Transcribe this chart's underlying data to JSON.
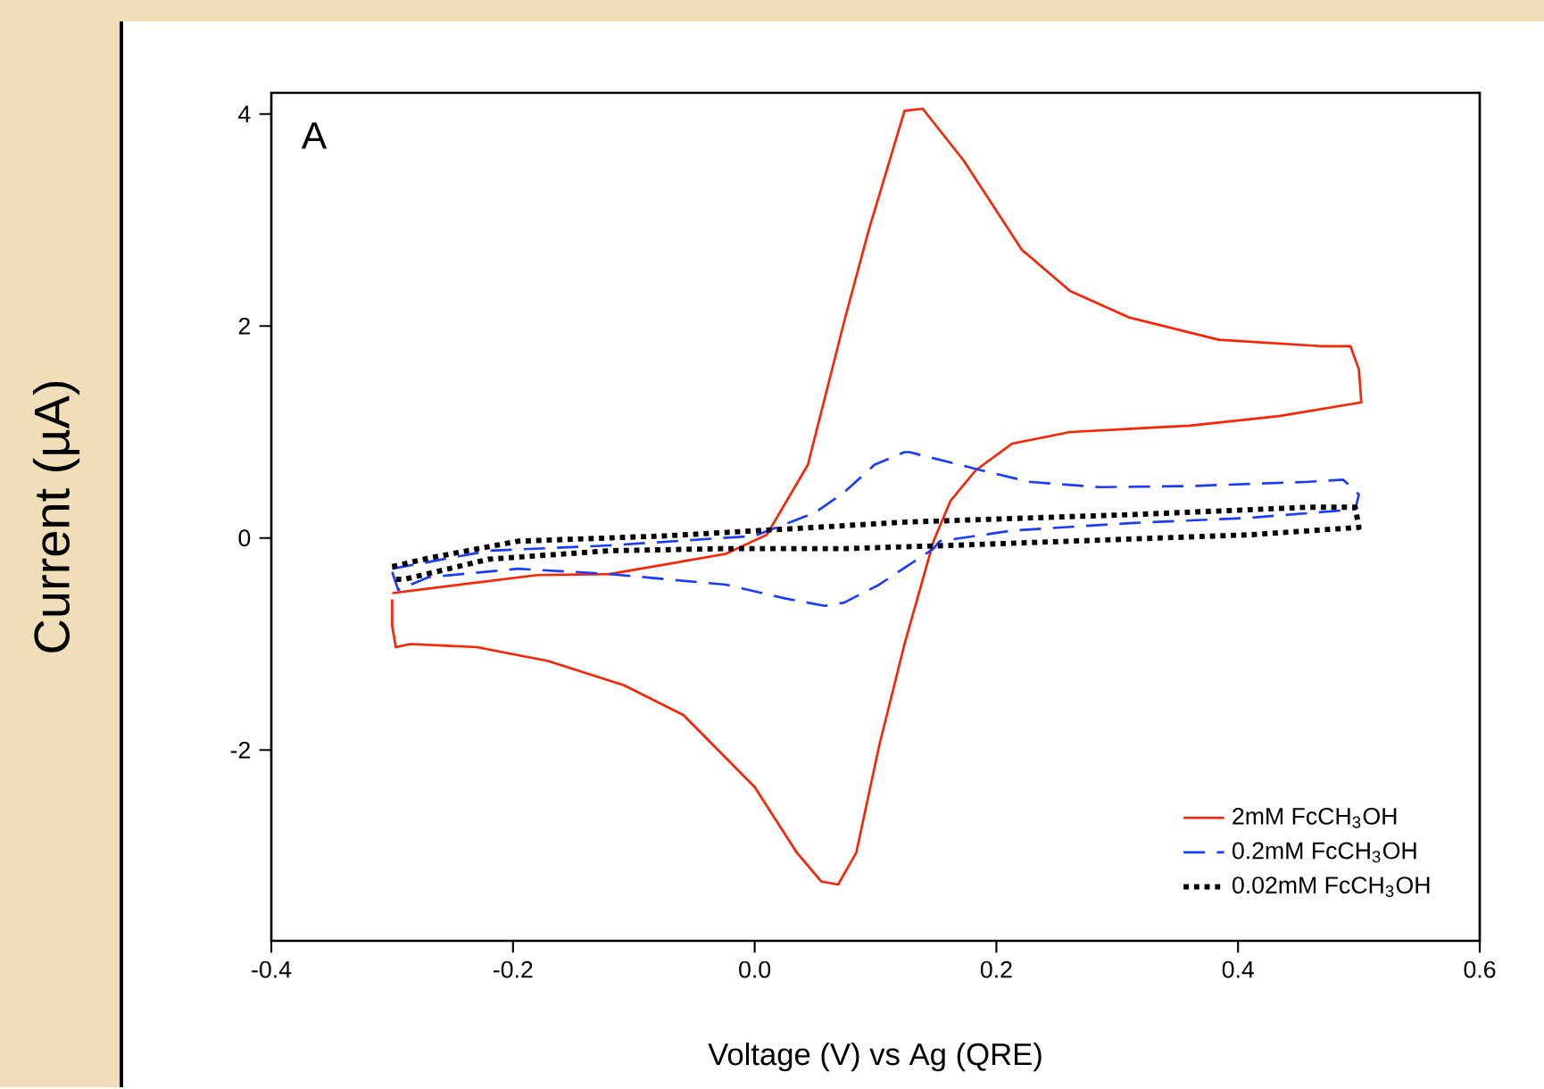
{
  "chart_data": {
    "type": "line",
    "xlabel": "Voltage (V) vs Ag (QRE)",
    "ylabel": "Current (µA)",
    "annotations": [
      "A"
    ],
    "xlim": [
      -0.4,
      0.6
    ],
    "ylim": [
      -3.8,
      4.2
    ],
    "xticks": [
      -0.4,
      -0.2,
      {
        "value": 0,
        "label": "0.0"
      },
      0.2,
      0.4,
      0.6
    ],
    "yticks": [
      -2,
      0,
      2,
      4
    ],
    "grid": false,
    "legend": "bottom right",
    "marker": "none",
    "series": [
      {
        "name": "2mM FcCH$_{3}$OH",
        "color": "#ff2200",
        "line_style": "solid",
        "x": [
          -0.3,
          -0.18,
          -0.12,
          -0.024,
          0.01,
          0.044,
          0.074,
          0.094,
          0.124,
          0.139,
          0.173,
          0.221,
          0.261,
          0.31,
          0.384,
          0.468,
          0.493,
          0.5,
          0.502,
          0.434,
          0.36,
          0.261,
          0.213,
          0.183,
          0.162,
          0.148,
          0.124,
          0.103,
          0.084,
          0.069,
          0.055,
          0.035,
          0.0,
          -0.059,
          -0.108,
          -0.171,
          -0.23,
          -0.285,
          -0.297,
          -0.3,
          -0.3
        ],
        "values": [
          -0.52,
          -0.35,
          -0.34,
          -0.15,
          0.03,
          0.69,
          2.04,
          2.89,
          4.03,
          4.05,
          3.56,
          2.72,
          2.33,
          2.08,
          1.87,
          1.81,
          1.81,
          1.59,
          1.28,
          1.15,
          1.06,
          1.0,
          0.89,
          0.64,
          0.35,
          -0.03,
          -1.0,
          -1.96,
          -2.97,
          -3.27,
          -3.24,
          -2.97,
          -2.35,
          -1.67,
          -1.39,
          -1.16,
          -1.03,
          -1.0,
          -1.03,
          -0.83,
          -0.58
        ]
      },
      {
        "name": "0.2mM FcCH$_{3}$OH",
        "color": "#1a3cff",
        "line_style": "dashed",
        "x": [
          -0.3,
          -0.22,
          -0.12,
          0.0,
          0.05,
          0.074,
          0.099,
          0.124,
          0.128,
          0.187,
          0.227,
          0.286,
          0.36,
          0.458,
          0.487,
          0.5,
          0.497,
          0.409,
          0.31,
          0.213,
          0.153,
          0.148,
          0.103,
          0.074,
          0.058,
          0.025,
          -0.024,
          -0.12,
          -0.196,
          -0.27,
          -0.295,
          -0.3
        ],
        "values": [
          -0.29,
          -0.12,
          -0.07,
          0.02,
          0.24,
          0.43,
          0.69,
          0.81,
          0.81,
          0.64,
          0.53,
          0.48,
          0.49,
          0.53,
          0.55,
          0.41,
          0.27,
          0.19,
          0.14,
          0.07,
          -0.03,
          -0.1,
          -0.44,
          -0.61,
          -0.64,
          -0.57,
          -0.44,
          -0.34,
          -0.29,
          -0.37,
          -0.49,
          -0.32
        ]
      },
      {
        "name": "0.02mM FcCH$_{3}$OH",
        "color": "#000000",
        "line_style": "dotted",
        "x": [
          -0.3,
          -0.27,
          -0.196,
          -0.074,
          0.05,
          0.124,
          0.31,
          0.458,
          0.497,
          0.5,
          0.409,
          0.261,
          0.162,
          0.074,
          -0.024,
          -0.12,
          -0.22,
          -0.29,
          -0.3
        ],
        "values": [
          -0.27,
          -0.19,
          -0.03,
          0.02,
          0.1,
          0.15,
          0.22,
          0.29,
          0.29,
          0.1,
          0.03,
          -0.03,
          -0.07,
          -0.1,
          -0.1,
          -0.12,
          -0.2,
          -0.39,
          -0.39
        ]
      }
    ]
  }
}
